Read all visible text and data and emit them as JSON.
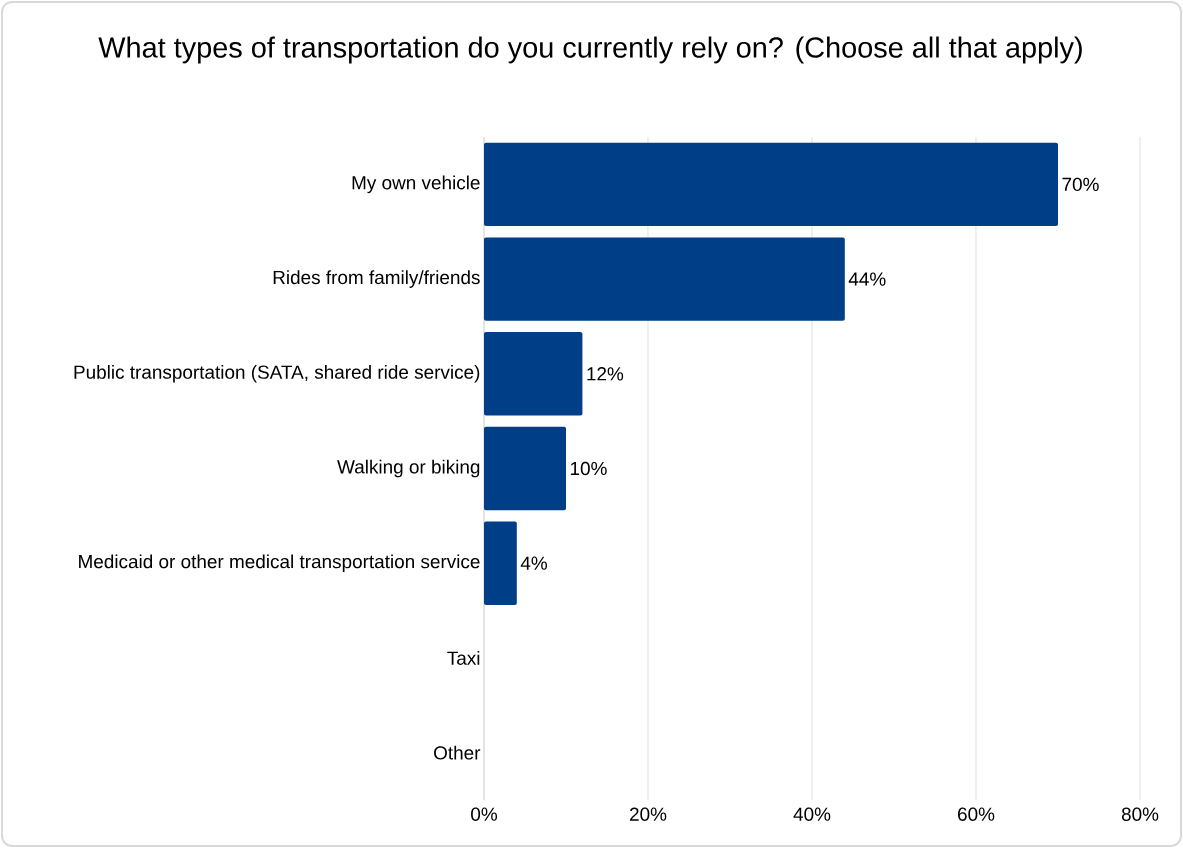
{
  "chart_data": {
    "type": "bar",
    "orientation": "horizontal",
    "title": "What types of transportation do you currently rely on? (Choose all that apply)",
    "categories": [
      "My own vehicle",
      "Rides from family/friends",
      "Public transportation (SATA, shared ride service)",
      "Walking or biking",
      "Medicaid or other medical transportation service",
      "Taxi",
      "Other"
    ],
    "values": [
      70,
      44,
      12,
      10,
      4,
      0,
      0
    ],
    "value_labels": [
      "70%",
      "44%",
      "12%",
      "10%",
      "4%",
      null,
      null
    ],
    "color": "#003f87",
    "xlim": [
      0,
      80
    ],
    "xticks": [
      {
        "value": 0,
        "label": "0%"
      },
      {
        "value": 20,
        "label": "20%"
      },
      {
        "value": 40,
        "label": "40%"
      },
      {
        "value": 60,
        "label": "60%"
      },
      {
        "value": 80,
        "label": "80%"
      }
    ],
    "grid": "x"
  }
}
